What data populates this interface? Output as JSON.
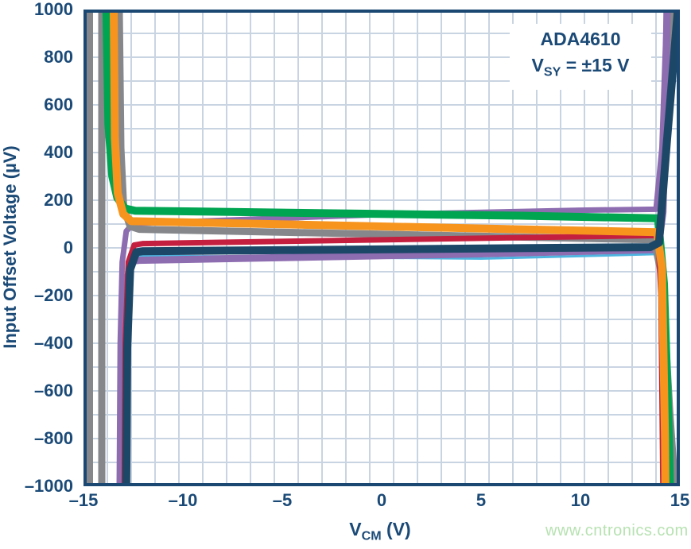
{
  "annotation": {
    "line1": "ADA4610",
    "line2_prefix": "V",
    "line2_sub": "SY",
    "line2_suffix": " = ±15 V"
  },
  "watermark": {
    "text": "www.cntronics.com",
    "color": "#b7e2b1"
  },
  "axes": {
    "y_title": "Input Offset Voltage (µV)",
    "x_title_prefix": "V",
    "x_title_sub": "CM",
    "x_title_suffix": " (V)",
    "y_tick_labels": [
      "1000",
      "800",
      "600",
      "400",
      "200",
      "0",
      "–200",
      "–400",
      "–600",
      "–800",
      "–1000"
    ],
    "x_tick_labels": [
      "–15",
      "–10",
      "–5",
      "0",
      "5",
      "10",
      "15"
    ],
    "text_color": "#1b4a77"
  },
  "chart_data": {
    "type": "line",
    "title": "ADA4610",
    "subtitle": "VSY = ±15 V",
    "xlabel": "VCM (V)",
    "ylabel": "Input Offset Voltage (µV)",
    "xlim": [
      -15,
      15
    ],
    "ylim": [
      -1000,
      1000
    ],
    "x_ticks": [
      -15,
      -10,
      -5,
      0,
      5,
      10,
      15
    ],
    "y_ticks": [
      1000,
      800,
      600,
      400,
      200,
      0,
      -200,
      -400,
      -600,
      -800,
      -1000
    ],
    "grid": true,
    "x_grid_divisions": 25,
    "y_grid_divisions": 20,
    "grid_color": "#c9d4e2",
    "axis_color": "#1b4872",
    "legend": "none",
    "series": [
      {
        "name": "unit-gray-rail-a",
        "color": "#85878a",
        "width": 8,
        "points": [
          [
            -14.68,
            1000
          ],
          [
            -14.68,
            -1000
          ]
        ]
      },
      {
        "name": "unit-gray-rail-b",
        "color": "#85878a",
        "width": 9,
        "points": [
          [
            -14.08,
            1000
          ],
          [
            -14.08,
            -1000
          ]
        ]
      },
      {
        "name": "unit-gray-rail-right",
        "color": "#85878a",
        "width": 8,
        "points": [
          [
            13.95,
            40
          ],
          [
            14.3,
            400
          ],
          [
            14.62,
            1000
          ]
        ]
      },
      {
        "name": "unit-cyan",
        "color": "#4db5e0",
        "width": 3,
        "points": [
          [
            -12.75,
            -1000
          ],
          [
            -12.7,
            -250
          ],
          [
            -12.55,
            -70
          ],
          [
            -12.2,
            -33
          ],
          [
            -5,
            -38
          ],
          [
            5,
            -45
          ],
          [
            13.9,
            -26
          ],
          [
            14.15,
            80
          ],
          [
            14.4,
            900
          ],
          [
            14.45,
            1000
          ]
        ]
      },
      {
        "name": "unit-purple-low",
        "color": "#8d6cb0",
        "width": 9,
        "points": [
          [
            -13.05,
            -1000
          ],
          [
            -13.0,
            -450
          ],
          [
            -12.85,
            -140
          ],
          [
            -12.55,
            -55
          ],
          [
            -12.2,
            -52
          ],
          [
            5,
            -25
          ],
          [
            13.9,
            -7
          ],
          [
            14.15,
            150
          ],
          [
            14.3,
            700
          ],
          [
            14.35,
            1000
          ]
        ]
      },
      {
        "name": "unit-purple-high",
        "color": "#8d6cb0",
        "width": 7,
        "points": [
          [
            -13.2,
            -1000
          ],
          [
            -13.15,
            -400
          ],
          [
            -13.05,
            -60
          ],
          [
            -12.85,
            70
          ],
          [
            -12.5,
            102
          ],
          [
            0,
            140
          ],
          [
            10,
            158
          ],
          [
            13.8,
            162
          ],
          [
            14.1,
            420
          ],
          [
            14.3,
            900
          ],
          [
            14.38,
            1000
          ]
        ]
      },
      {
        "name": "unit-gray-main",
        "color": "#85878a",
        "width": 9,
        "points": [
          [
            -13.2,
            1000
          ],
          [
            -13.12,
            420
          ],
          [
            -12.98,
            170
          ],
          [
            -12.65,
            90
          ],
          [
            -12.2,
            78
          ],
          [
            13.7,
            34
          ],
          [
            14.1,
            -120
          ],
          [
            14.5,
            -700
          ],
          [
            14.75,
            -1000
          ]
        ]
      },
      {
        "name": "unit-green",
        "color": "#00a551",
        "width": 10,
        "points": [
          [
            -13.85,
            1000
          ],
          [
            -13.75,
            520
          ],
          [
            -13.55,
            300
          ],
          [
            -13.3,
            210
          ],
          [
            -12.9,
            165
          ],
          [
            -12.4,
            156
          ],
          [
            7,
            135
          ],
          [
            13.9,
            124
          ],
          [
            14.2,
            -150
          ],
          [
            14.45,
            -800
          ],
          [
            14.5,
            -1000
          ]
        ]
      },
      {
        "name": "unit-red",
        "color": "#c41f3e",
        "width": 7,
        "points": [
          [
            -12.95,
            -1000
          ],
          [
            -12.9,
            -400
          ],
          [
            -12.75,
            -60
          ],
          [
            -12.45,
            12
          ],
          [
            -12.0,
            18
          ],
          [
            13.9,
            52
          ],
          [
            14.05,
            -200
          ],
          [
            14.15,
            -1000
          ]
        ]
      },
      {
        "name": "unit-orange",
        "color": "#f7941e",
        "width": 10,
        "points": [
          [
            -13.48,
            1000
          ],
          [
            -13.42,
            460
          ],
          [
            -13.28,
            230
          ],
          [
            -13.0,
            142
          ],
          [
            -12.6,
            112
          ],
          [
            13.85,
            66
          ],
          [
            14.1,
            -80
          ],
          [
            14.25,
            -800
          ],
          [
            14.27,
            -1000
          ]
        ]
      },
      {
        "name": "unit-navy",
        "color": "#1d4767",
        "width": 10,
        "points": [
          [
            -12.85,
            -1000
          ],
          [
            -12.8,
            -420
          ],
          [
            -12.65,
            -90
          ],
          [
            -12.35,
            -18
          ],
          [
            -12.0,
            -14
          ],
          [
            13.5,
            3
          ],
          [
            13.95,
            22
          ],
          [
            14.35,
            450
          ],
          [
            14.9,
            1000
          ]
        ]
      }
    ]
  }
}
